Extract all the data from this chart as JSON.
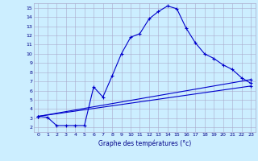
{
  "xlabel": "Graphe des températures (°c)",
  "xlim": [
    -0.5,
    23.5
  ],
  "ylim": [
    1.5,
    15.5
  ],
  "yticks": [
    2,
    3,
    4,
    5,
    6,
    7,
    8,
    9,
    10,
    11,
    12,
    13,
    14,
    15
  ],
  "xticks": [
    0,
    1,
    2,
    3,
    4,
    5,
    6,
    7,
    8,
    9,
    10,
    11,
    12,
    13,
    14,
    15,
    16,
    17,
    18,
    19,
    20,
    21,
    22,
    23
  ],
  "xtick_labels": [
    "0",
    "1",
    "2",
    "3",
    "4",
    "5",
    "6",
    "7",
    "8",
    "9",
    "10",
    "11",
    "12",
    "13",
    "14",
    "15",
    "16",
    "17",
    "18",
    "19",
    "20",
    "21",
    "22",
    "23"
  ],
  "bg_color": "#cceeff",
  "grid_color": "#aaaacc",
  "line_color": "#0000cc",
  "curve1_x": [
    0,
    1,
    2,
    3,
    4,
    5,
    6,
    7,
    8,
    9,
    10,
    11,
    12,
    13,
    14,
    15,
    16,
    17,
    18,
    19,
    20,
    21,
    22,
    23
  ],
  "curve1_y": [
    3.2,
    3.1,
    2.2,
    2.2,
    2.2,
    2.2,
    6.4,
    5.3,
    7.6,
    10.0,
    11.8,
    12.2,
    13.8,
    14.6,
    15.2,
    14.9,
    12.8,
    11.2,
    10.0,
    9.5,
    8.8,
    8.3,
    7.4,
    6.8
  ],
  "curve2_x": [
    0,
    23
  ],
  "curve2_y": [
    3.2,
    7.2
  ],
  "curve3_x": [
    0,
    23
  ],
  "curve3_y": [
    3.2,
    6.5
  ],
  "marker": "+"
}
